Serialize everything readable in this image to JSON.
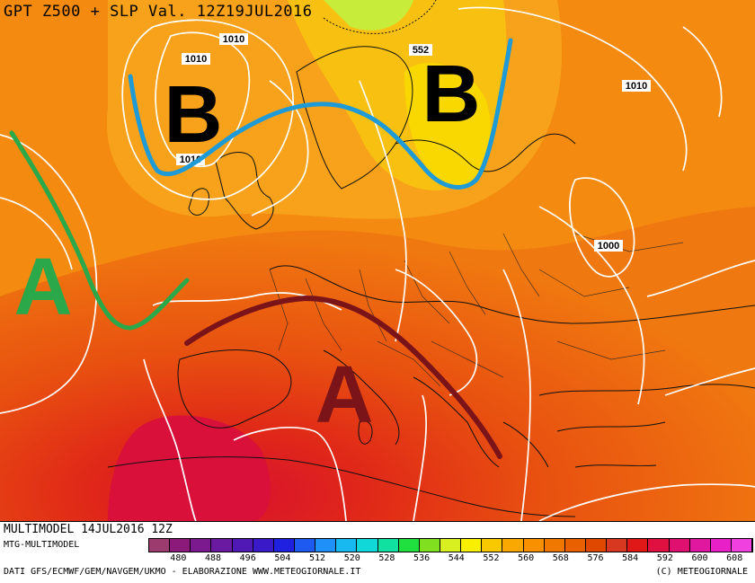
{
  "title": "GPT Z500 + SLP Val. 12Z19JUL2016",
  "map": {
    "pressure_labels": [
      "1010",
      "1010",
      "1010",
      "1010",
      "1000"
    ],
    "height_label": "552",
    "systems": [
      {
        "letter": "B",
        "kind": "low",
        "color": "#000000"
      },
      {
        "letter": "B",
        "kind": "low",
        "color": "#000000"
      },
      {
        "letter": "A",
        "kind": "high",
        "color": "#2aa84a"
      },
      {
        "letter": "A",
        "kind": "high",
        "color": "#7a1418"
      }
    ],
    "annotations": [
      {
        "name": "trough-line",
        "color": "#1e9ad6"
      },
      {
        "name": "ridge-line-atlantic",
        "color": "#2aa84a"
      },
      {
        "name": "ridge-line-mediterranean",
        "color": "#7a1418"
      }
    ]
  },
  "footer": {
    "run_label": "MULTIMODEL 14JUL2016 12Z",
    "model_label": "MTG-MULTIMODEL",
    "credits": "DATI GFS/ECMWF/GEM/NAVGEM/UKMO - ELABORAZIONE WWW.METEOGIORNALE.IT",
    "copyright": "(C) METEOGIORNALE"
  },
  "legend": {
    "ticks": [
      "480",
      "488",
      "496",
      "504",
      "512",
      "520",
      "528",
      "536",
      "544",
      "552",
      "560",
      "568",
      "576",
      "584",
      "592",
      "600",
      "608"
    ],
    "colors": [
      "#9b3b6e",
      "#8b1a7a",
      "#7a1a8e",
      "#6a1aa0",
      "#5018b4",
      "#3a1ac8",
      "#2020e0",
      "#1e5af0",
      "#1e90f8",
      "#18b8f0",
      "#10d8d8",
      "#10e0a0",
      "#20e040",
      "#80e020",
      "#d8f020",
      "#f8f000",
      "#f8c800",
      "#f8a800",
      "#f89000",
      "#f07800",
      "#e86000",
      "#e04800",
      "#d83820",
      "#e01818",
      "#e01040",
      "#e01070",
      "#e018a0",
      "#e820c8",
      "#f040e0"
    ]
  }
}
